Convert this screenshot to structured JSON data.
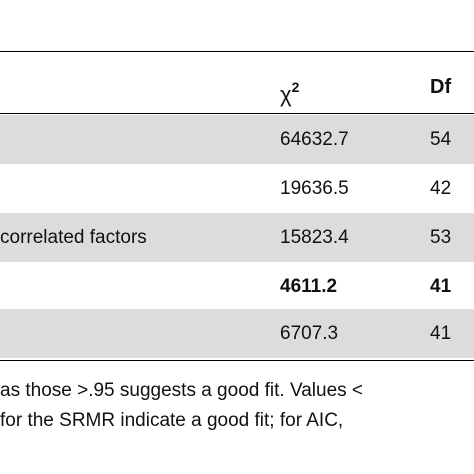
{
  "table": {
    "headers": {
      "chi_symbol": "χ",
      "chi_superscript": "2",
      "df": "Df"
    },
    "rows": [
      {
        "name": "",
        "chi": "64632.7",
        "df": "54",
        "shaded": true,
        "bold": false
      },
      {
        "name": "",
        "chi": "19636.5",
        "df": "42",
        "shaded": false,
        "bold": false
      },
      {
        "name": "correlated factors",
        "chi": "15823.4",
        "df": "53",
        "shaded": true,
        "bold": false
      },
      {
        "name": "",
        "chi": "4611.2",
        "df": "41",
        "shaded": false,
        "bold": true
      },
      {
        "name": "",
        "chi": "6707.3",
        "df": "41",
        "shaded": true,
        "bold": false
      }
    ]
  },
  "footnote": {
    "line1": "as those >.95 suggests a good fit. Values <",
    "line2": " for the SRMR indicate a good fit; for AIC,"
  },
  "colors": {
    "shaded_row": "#dcdcdc",
    "text": "#111111"
  }
}
